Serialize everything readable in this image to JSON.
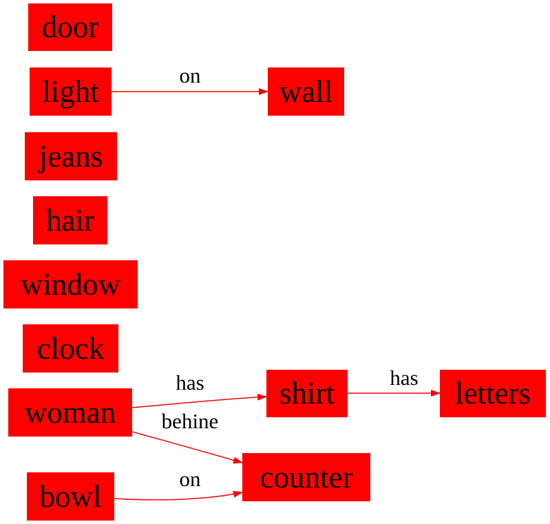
{
  "colors": {
    "node_fill": "#ff0000",
    "edge": "#ff0000",
    "text": "#000000"
  },
  "nodes": {
    "door": "door",
    "light": "light",
    "wall": "wall",
    "jeans": "jeans",
    "hair": "hair",
    "window": "window",
    "clock": "clock",
    "woman": "woman",
    "shirt": "shirt",
    "letters": "letters",
    "counter": "counter",
    "bowl": "bowl"
  },
  "edges": [
    {
      "from": "light",
      "to": "wall",
      "label": "on"
    },
    {
      "from": "woman",
      "to": "shirt",
      "label": "has"
    },
    {
      "from": "shirt",
      "to": "letters",
      "label": "has"
    },
    {
      "from": "woman",
      "to": "counter",
      "label": "behine"
    },
    {
      "from": "bowl",
      "to": "counter",
      "label": "on"
    }
  ]
}
